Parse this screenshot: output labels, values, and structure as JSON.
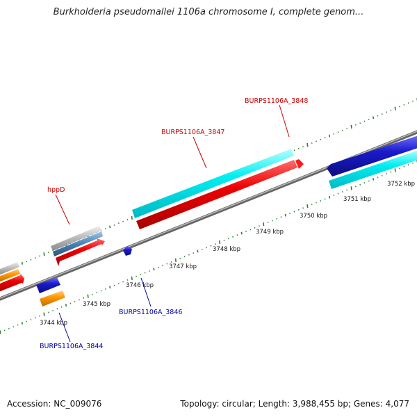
{
  "title": "Burkholderia pseudomallei 1106a chromosome I, complete genom...",
  "footer": {
    "accession": "Accession: NC_009076",
    "summary": "Topology: circular; Length: 3,988,455 bp; Genes: 4,077"
  },
  "kbp_labels": [
    "3744 kbp",
    "3745 kbp",
    "3746 kbp",
    "3747 kbp",
    "3748 kbp",
    "3749 kbp",
    "3750 kbp",
    "3751 kbp",
    "3752 kbp"
  ],
  "gene_labels": {
    "hppD": "hppD",
    "BURPS1106A_3847": "BURPS1106A_3847",
    "BURPS1106A_3848": "BURPS1106A_3848",
    "BURPS1106A_3846": "BURPS1106A_3846",
    "BURPS1106A_3844": "BURPS1106A_3844"
  },
  "colors": {
    "forward_label": "#cc0000",
    "reverse_label": "#0000aa",
    "backbone": "#888888",
    "cds_red": "#ee0000",
    "cds_blue": "#1a1acc",
    "cds_cyan": "#00e5ee",
    "cds_orange": "#ff9900",
    "tick_green": "#2e7d32"
  }
}
